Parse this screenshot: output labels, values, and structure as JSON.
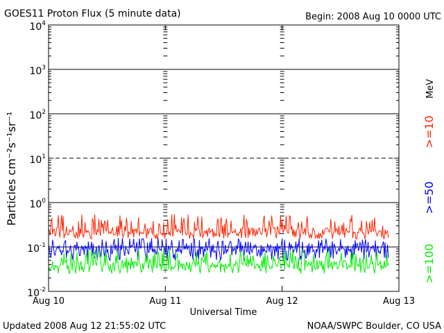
{
  "chart_data": {
    "type": "line",
    "title": "GOES11 Proton Flux (5 minute data)",
    "begin_label": "Begin: 2008 Aug 10 0000 UTC",
    "xlabel": "Universal Time",
    "ylabel": "Particles cm⁻²s⁻¹sr⁻¹",
    "y_scale": "log",
    "ylim": [
      0.01,
      10000
    ],
    "y_ticks": [
      {
        "value": 0.01,
        "base": "10",
        "exp": "-2"
      },
      {
        "value": 0.1,
        "base": "10",
        "exp": "-1"
      },
      {
        "value": 1,
        "base": "10",
        "exp": "0"
      },
      {
        "value": 10,
        "base": "10",
        "exp": "1"
      },
      {
        "value": 100,
        "base": "10",
        "exp": "2"
      },
      {
        "value": 1000,
        "base": "10",
        "exp": "3"
      },
      {
        "value": 10000,
        "base": "10",
        "exp": "4"
      }
    ],
    "x_range": [
      "2008-08-10",
      "2008-08-13"
    ],
    "x_ticks": [
      {
        "date": "2008-08-10",
        "label": "Aug 10"
      },
      {
        "date": "2008-08-11",
        "label": "Aug 11"
      },
      {
        "date": "2008-08-12",
        "label": "Aug 12"
      },
      {
        "date": "2008-08-13",
        "label": "Aug 13"
      }
    ],
    "grid": {
      "horizontal": true,
      "dashed_at": [
        10
      ],
      "day_tick_columns": true
    },
    "unit_label": "MeV",
    "series": [
      {
        "name": ">=10",
        "color": "#ff2200",
        "range": [
          0.15,
          0.55
        ],
        "typical": 0.22
      },
      {
        "name": ">=50",
        "color": "#0000ff",
        "range": [
          0.05,
          0.16
        ],
        "typical": 0.09
      },
      {
        "name": ">=100",
        "color": "#00ee00",
        "range": [
          0.025,
          0.09
        ],
        "typical": 0.04
      }
    ],
    "data_end": "2008-08-12 21:55"
  },
  "footer": {
    "updated": "Updated 2008 Aug 12 21:55:02 UTC",
    "source": "NOAA/SWPC Boulder, CO USA"
  }
}
